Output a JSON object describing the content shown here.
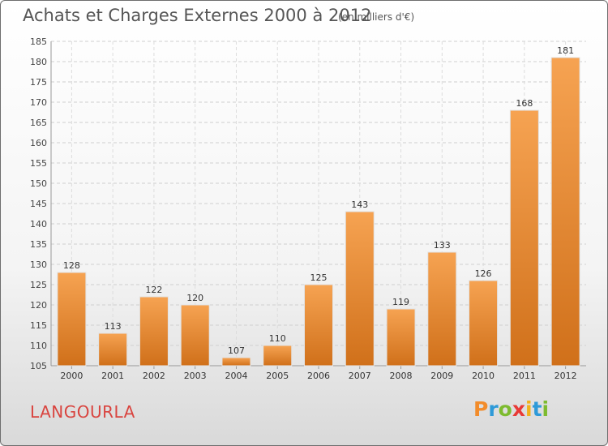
{
  "header": {
    "title": "Achats et Charges Externes 2000 à 2012",
    "unit": "(en milliers d'€)"
  },
  "footer": {
    "commune": "LANGOURLA",
    "logo_letters": [
      "P",
      "r",
      "o",
      "x",
      "i",
      "t",
      "i"
    ],
    "logo_colors": [
      "#f28c2b",
      "#2e9ad8",
      "#7dbb2f",
      "#e83a36",
      "#f2b21a",
      "#2e9ad8",
      "#7dbb2f"
    ]
  },
  "chart_data": {
    "type": "bar",
    "categories": [
      "2000",
      "2001",
      "2002",
      "2003",
      "2004",
      "2005",
      "2006",
      "2007",
      "2008",
      "2009",
      "2010",
      "2011",
      "2012"
    ],
    "values": [
      128,
      113,
      122,
      120,
      107,
      110,
      125,
      143,
      119,
      133,
      126,
      168,
      181
    ],
    "title": "Achats et Charges Externes 2000 à 2012",
    "subtitle": "(en milliers d'€)",
    "ylim": [
      105,
      185
    ],
    "yticks": [
      105,
      110,
      115,
      120,
      125,
      130,
      135,
      140,
      145,
      150,
      155,
      160,
      165,
      170,
      175,
      180,
      185
    ],
    "grid": true,
    "bar_color": "#f08a24"
  }
}
